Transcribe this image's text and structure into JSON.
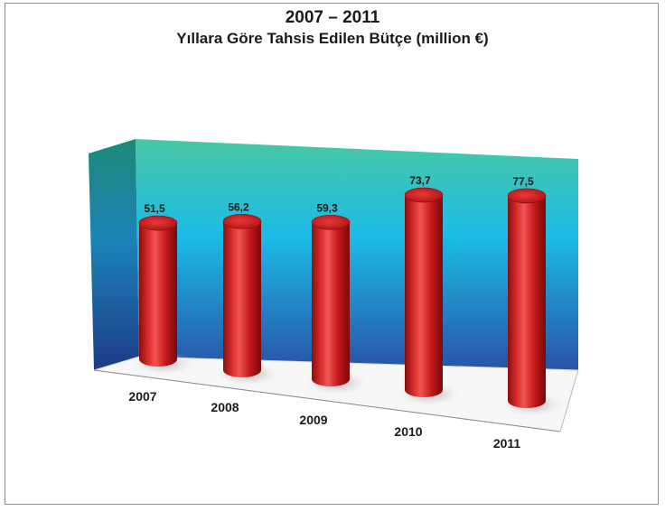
{
  "chart_data": {
    "type": "bar",
    "title": "2007 – 2011",
    "subtitle": "Yıllara Göre Tahsis Edilen Bütçe (million €)",
    "categories": [
      "2007",
      "2008",
      "2009",
      "2010",
      "2011"
    ],
    "values": [
      51.5,
      56.2,
      59.3,
      73.7,
      77.5
    ],
    "value_labels": [
      "51,5",
      "56,2",
      "59,3",
      "73,7",
      "77,5"
    ],
    "bar_shape": "3d-cylinder",
    "bar_color": "#d42020",
    "background_gradient": [
      "#3fc2a0",
      "#18b9e2",
      "#2a5aa8"
    ],
    "grid": false,
    "legend": "none"
  }
}
